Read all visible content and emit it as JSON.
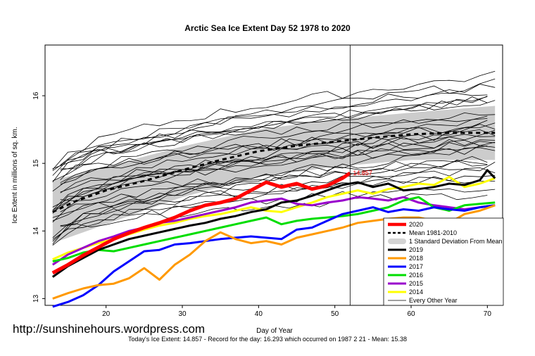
{
  "watermark": "http://sunshinehours.wordpress.com",
  "chart_data": {
    "type": "line",
    "title": "Arctic Sea Ice Extent Day 52 1978 to 2020",
    "xlabel": "Day of Year",
    "ylabel": "Ice Extent in millions of sq. km.",
    "footer": "Today's Ice Extent: 14.857  - Record for the day: 16.293 which occurred on 1987 2 21  - Mean: 15.38",
    "xlim": [
      12,
      72
    ],
    "ylim": [
      12.9,
      16.75
    ],
    "xticks": [
      20,
      30,
      40,
      50,
      60,
      70
    ],
    "yticks": [
      13,
      14,
      15,
      16
    ],
    "current_day": 52,
    "current_value_label": "14.857",
    "legend_position": "bottom-right",
    "legend": [
      {
        "label": "2020",
        "color": "#ff0000",
        "style": "thick"
      },
      {
        "label": "Mean 1981-2010",
        "color": "#000000",
        "style": "dashed"
      },
      {
        "label": "1 Standard Deviation From Mean",
        "color": "#d3d3d3",
        "style": "band"
      },
      {
        "label": "2019",
        "color": "#000000",
        "style": "solid"
      },
      {
        "label": "2018",
        "color": "#ff9900",
        "style": "solid"
      },
      {
        "label": "2017",
        "color": "#0000ff",
        "style": "solid"
      },
      {
        "label": "2016",
        "color": "#00dd00",
        "style": "solid"
      },
      {
        "label": "2015",
        "color": "#9900cc",
        "style": "solid"
      },
      {
        "label": "2014",
        "color": "#ffff00",
        "style": "solid"
      },
      {
        "label": "Every Other Year",
        "color": "#000000",
        "style": "thin"
      }
    ],
    "mean": {
      "x": [
        13,
        16,
        20,
        25,
        30,
        35,
        40,
        45,
        50,
        55,
        60,
        65,
        70,
        71
      ],
      "values": [
        14.28,
        14.44,
        14.6,
        14.74,
        14.9,
        15.05,
        15.18,
        15.26,
        15.32,
        15.38,
        15.43,
        15.45,
        15.45,
        15.45
      ]
    },
    "std_band": {
      "x": [
        13,
        20,
        30,
        40,
        50,
        60,
        71
      ],
      "upper": [
        14.75,
        14.95,
        15.25,
        15.5,
        15.65,
        15.75,
        15.85
      ],
      "lower": [
        13.82,
        14.1,
        14.5,
        14.8,
        14.95,
        15.05,
        15.05
      ]
    },
    "series": [
      {
        "name": "2020",
        "color": "#ff0000",
        "width": 5,
        "x": [
          13,
          15,
          17,
          19,
          21,
          23,
          25,
          27,
          29,
          31,
          33,
          35,
          37,
          39,
          41,
          43,
          45,
          47,
          49,
          51,
          52
        ],
        "values": [
          13.38,
          13.5,
          13.64,
          13.76,
          13.88,
          13.97,
          14.05,
          14.12,
          14.2,
          14.3,
          14.38,
          14.42,
          14.48,
          14.6,
          14.72,
          14.65,
          14.7,
          14.62,
          14.67,
          14.78,
          14.857
        ]
      },
      {
        "name": "2019",
        "color": "#000000",
        "width": 3,
        "x": [
          13,
          15,
          17,
          19,
          21,
          23,
          25,
          27,
          29,
          31,
          33,
          35,
          37,
          39,
          41,
          43,
          45,
          47,
          49,
          51,
          53,
          55,
          57,
          59,
          61,
          63,
          65,
          67,
          69,
          70,
          71
        ],
        "values": [
          13.32,
          13.48,
          13.6,
          13.72,
          13.8,
          13.88,
          13.93,
          13.98,
          14.03,
          14.08,
          14.12,
          14.18,
          14.22,
          14.28,
          14.32,
          14.42,
          14.45,
          14.52,
          14.6,
          14.68,
          14.72,
          14.65,
          14.7,
          14.6,
          14.62,
          14.65,
          14.7,
          14.68,
          14.75,
          14.9,
          14.78
        ]
      },
      {
        "name": "2018",
        "color": "#ff9900",
        "width": 3,
        "x": [
          13,
          15,
          17,
          19,
          21,
          23,
          25,
          27,
          29,
          31,
          33,
          35,
          37,
          39,
          41,
          43,
          45,
          47,
          49,
          51,
          53,
          55,
          57,
          59,
          61,
          63,
          65,
          67,
          69,
          71
        ],
        "values": [
          13.0,
          13.08,
          13.15,
          13.2,
          13.22,
          13.3,
          13.45,
          13.28,
          13.5,
          13.65,
          13.85,
          13.98,
          13.88,
          13.82,
          13.85,
          13.8,
          13.9,
          13.95,
          14.0,
          14.05,
          14.12,
          14.15,
          14.18,
          14.2,
          14.2,
          14.15,
          14.12,
          14.25,
          14.3,
          14.38
        ]
      },
      {
        "name": "2017",
        "color": "#0000ff",
        "width": 3,
        "x": [
          13,
          15,
          17,
          19,
          21,
          23,
          25,
          27,
          29,
          31,
          33,
          35,
          37,
          39,
          41,
          43,
          45,
          47,
          49,
          51,
          53,
          55,
          57,
          59,
          61,
          63,
          65,
          67,
          69,
          71
        ],
        "values": [
          12.88,
          12.95,
          13.05,
          13.2,
          13.4,
          13.55,
          13.7,
          13.72,
          13.8,
          13.82,
          13.85,
          13.88,
          13.9,
          13.92,
          13.9,
          13.88,
          14.02,
          14.05,
          14.15,
          14.25,
          14.3,
          14.35,
          14.28,
          14.32,
          14.3,
          14.35,
          14.32,
          14.3,
          14.35,
          14.38
        ]
      },
      {
        "name": "2016",
        "color": "#00dd00",
        "width": 3,
        "x": [
          13,
          15,
          17,
          19,
          21,
          23,
          25,
          27,
          29,
          31,
          33,
          35,
          37,
          39,
          41,
          43,
          45,
          47,
          49,
          51,
          53,
          55,
          57,
          59,
          61,
          63,
          65,
          67,
          69,
          71
        ],
        "values": [
          13.55,
          13.6,
          13.68,
          13.72,
          13.7,
          13.75,
          13.8,
          13.85,
          13.9,
          13.95,
          14.0,
          14.05,
          14.1,
          14.15,
          14.2,
          14.1,
          14.15,
          14.18,
          14.2,
          14.22,
          14.25,
          14.3,
          14.35,
          14.45,
          14.5,
          14.35,
          14.3,
          14.38,
          14.4,
          14.42
        ]
      },
      {
        "name": "2015",
        "color": "#9900cc",
        "width": 3,
        "x": [
          13,
          15,
          17,
          19,
          21,
          23,
          25,
          27,
          29,
          31,
          33,
          35,
          37,
          39,
          41,
          43,
          45,
          47,
          49,
          51,
          53,
          55,
          57,
          59,
          61,
          63,
          65,
          67,
          69,
          71
        ],
        "values": [
          13.5,
          13.65,
          13.75,
          13.85,
          13.92,
          14.0,
          14.05,
          14.12,
          14.15,
          14.2,
          14.25,
          14.3,
          14.35,
          14.42,
          14.45,
          14.48,
          14.4,
          14.38,
          14.42,
          14.45,
          14.5,
          14.48,
          14.45,
          14.5,
          14.42,
          14.38,
          14.35,
          14.32,
          14.35,
          14.38
        ]
      },
      {
        "name": "2014",
        "color": "#ffff00",
        "width": 3,
        "x": [
          13,
          15,
          17,
          19,
          21,
          23,
          25,
          27,
          29,
          31,
          33,
          35,
          37,
          39,
          41,
          43,
          45,
          47,
          49,
          51,
          53,
          55,
          57,
          59,
          61,
          63,
          65,
          67,
          69,
          71
        ],
        "values": [
          13.58,
          13.68,
          13.75,
          13.82,
          13.88,
          13.95,
          14.02,
          14.08,
          14.12,
          14.18,
          14.22,
          14.25,
          14.3,
          14.35,
          14.3,
          14.28,
          14.35,
          14.42,
          14.5,
          14.55,
          14.6,
          14.55,
          14.62,
          14.65,
          14.7,
          14.68,
          14.8,
          14.65,
          14.7,
          14.78
        ]
      }
    ]
  }
}
